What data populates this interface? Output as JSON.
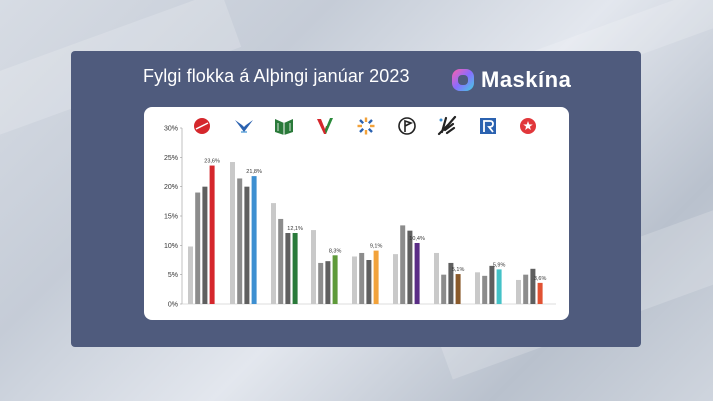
{
  "title": "Fylgi flokka á Alþingi janúar 2023",
  "brand": "Maskína",
  "chart_data": {
    "type": "bar",
    "ylim": [
      0,
      30
    ],
    "ytick_labels": [
      "0%",
      "5%",
      "10%",
      "15%",
      "20%",
      "25%",
      "30%"
    ],
    "grid": false,
    "legend": "party logos above bar groups",
    "parties": [
      {
        "icon": "red-circle-logo",
        "color": "#d5272c",
        "values": [
          9.8,
          19,
          20,
          23.6
        ],
        "label": "23,6%"
      },
      {
        "icon": "blue-bird-logo",
        "color": "#3d8fd1",
        "values": [
          24.2,
          21.4,
          20,
          21.8
        ],
        "label": "21,8%"
      },
      {
        "icon": "green-book-logo",
        "color": "#2a7a3a",
        "values": [
          17.2,
          14.5,
          12.1,
          12.1
        ],
        "label": "12,1%"
      },
      {
        "icon": "green-red-v-logo",
        "color": "#5f9a3a",
        "values": [
          12.6,
          7,
          7.3,
          8.3
        ],
        "label": "8,3%"
      },
      {
        "icon": "orange-sun-logo",
        "color": "#f2a23a",
        "values": [
          8.1,
          8.7,
          7.5,
          9.1
        ],
        "label": "9,1%"
      },
      {
        "icon": "pirate-flag-logo",
        "color": "#5a2d86",
        "values": [
          8.5,
          13.4,
          12.5,
          10.4
        ],
        "label": "10,4%"
      },
      {
        "icon": "black-hand-logo",
        "color": "#8a5a2b",
        "values": [
          8.7,
          5,
          7,
          5.1
        ],
        "label": "5,1%"
      },
      {
        "icon": "blue-r-logo",
        "color": "#44c2c7",
        "values": [
          5.4,
          4.8,
          6.5,
          5.9
        ],
        "label": "5,9%"
      },
      {
        "icon": "red-star-logo",
        "color": "#e15233",
        "values": [
          4.1,
          5,
          6,
          3.6
        ],
        "label": "3,6%"
      }
    ],
    "history_colors": [
      "#c9c9c9",
      "#8c8c8c",
      "#5f5f5f"
    ]
  }
}
